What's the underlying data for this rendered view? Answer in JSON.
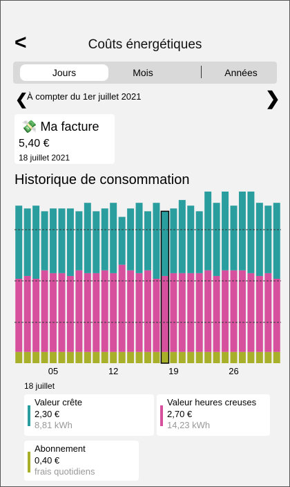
{
  "header": {
    "title": "Coûts énergétiques"
  },
  "tabs": [
    "Jours",
    "Mois",
    "Années"
  ],
  "period": "À compter du 1er juillet 2021",
  "bill": {
    "title": "Ma facture",
    "amount": "5,40 €",
    "date": "18 juillet 2021"
  },
  "section_title": "Historique de consommation",
  "chart_data": {
    "type": "bar",
    "stacked": true,
    "categories": [
      null,
      null,
      null,
      null,
      "05",
      null,
      null,
      null,
      null,
      null,
      null,
      "12",
      null,
      null,
      null,
      null,
      null,
      null,
      "19",
      null,
      null,
      null,
      null,
      null,
      null,
      "26",
      null,
      null,
      null,
      null,
      null
    ],
    "series": [
      {
        "name": "Abonnement",
        "color": "#a8b02a",
        "values": [
          0.4,
          0.4,
          0.4,
          0.4,
          0.4,
          0.4,
          0.4,
          0.4,
          0.4,
          0.4,
          0.4,
          0.4,
          0.4,
          0.4,
          0.4,
          0.4,
          0.4,
          0.4,
          0.4,
          0.4,
          0.4,
          0.4,
          0.4,
          0.4,
          0.4,
          0.4,
          0.4,
          0.4,
          0.4,
          0.4,
          0.4
        ]
      },
      {
        "name": "Valeur heures creuses",
        "color": "#d6509e",
        "values": [
          2.6,
          2.7,
          2.6,
          2.9,
          2.8,
          2.8,
          2.7,
          2.9,
          2.8,
          2.8,
          2.9,
          2.8,
          3.1,
          2.9,
          2.8,
          2.9,
          2.6,
          2.7,
          2.8,
          2.8,
          2.8,
          2.8,
          2.9,
          2.7,
          2.9,
          2.9,
          2.9,
          2.8,
          2.7,
          2.8,
          2.6
        ]
      },
      {
        "name": "Valeur crête",
        "color": "#2a9d9f",
        "values": [
          2.6,
          2.4,
          2.6,
          2.1,
          2.3,
          2.3,
          2.4,
          2.1,
          2.5,
          2.2,
          2.2,
          2.5,
          1.7,
          2.2,
          2.5,
          2.1,
          2.7,
          2.3,
          2.3,
          2.6,
          2.4,
          2.2,
          2.8,
          2.6,
          2.8,
          2.3,
          2.8,
          2.9,
          2.6,
          2.4,
          2.7
        ]
      }
    ],
    "ylim": [
      0,
      6
    ],
    "selected": 17
  },
  "detail": {
    "date": "18 juillet",
    "items": [
      {
        "value": "2,30 €",
        "sub": "8,81 kWh"
      },
      {
        "value": "2,70 €",
        "sub": "14,23 kWh"
      },
      {
        "value": "0,40 €",
        "sub": "frais quotidiens"
      }
    ]
  }
}
